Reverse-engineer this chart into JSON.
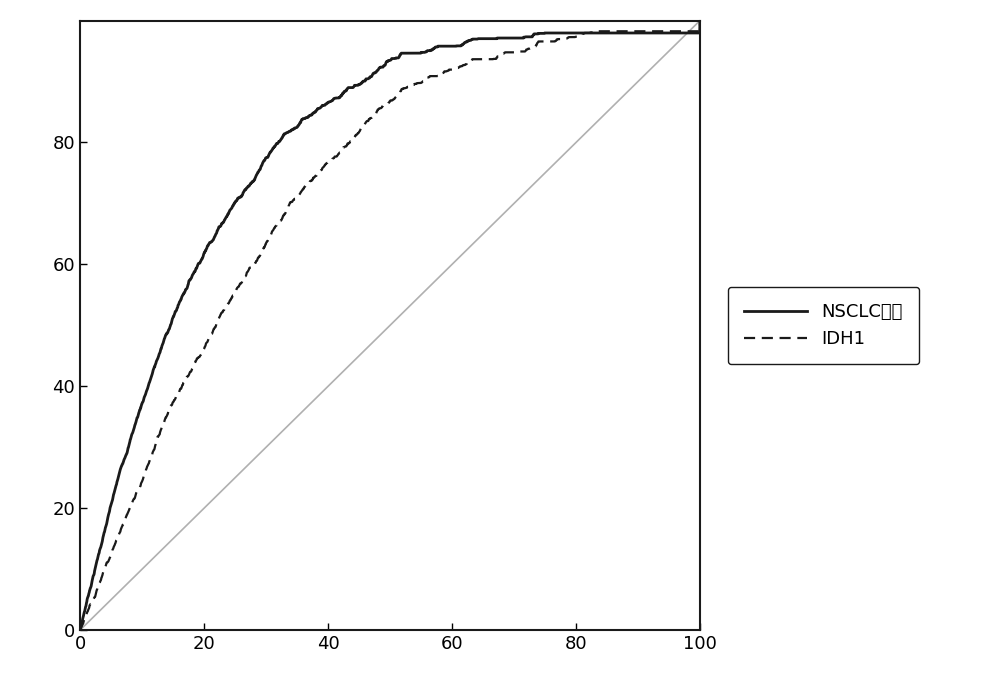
{
  "title": "",
  "xlabel": "",
  "ylabel": "",
  "xlim": [
    0,
    100
  ],
  "ylim": [
    0,
    100
  ],
  "xticks": [
    0,
    20,
    40,
    60,
    80,
    100
  ],
  "yticks": [
    0,
    20,
    40,
    60,
    80
  ],
  "background_color": "#ffffff",
  "line_color": "#1a1a1a",
  "diag_color": "#b0b0b0",
  "legend_labels": [
    "NSCLC模型",
    "IDH1"
  ],
  "tick_fontsize": 13,
  "legend_fontsize": 13
}
